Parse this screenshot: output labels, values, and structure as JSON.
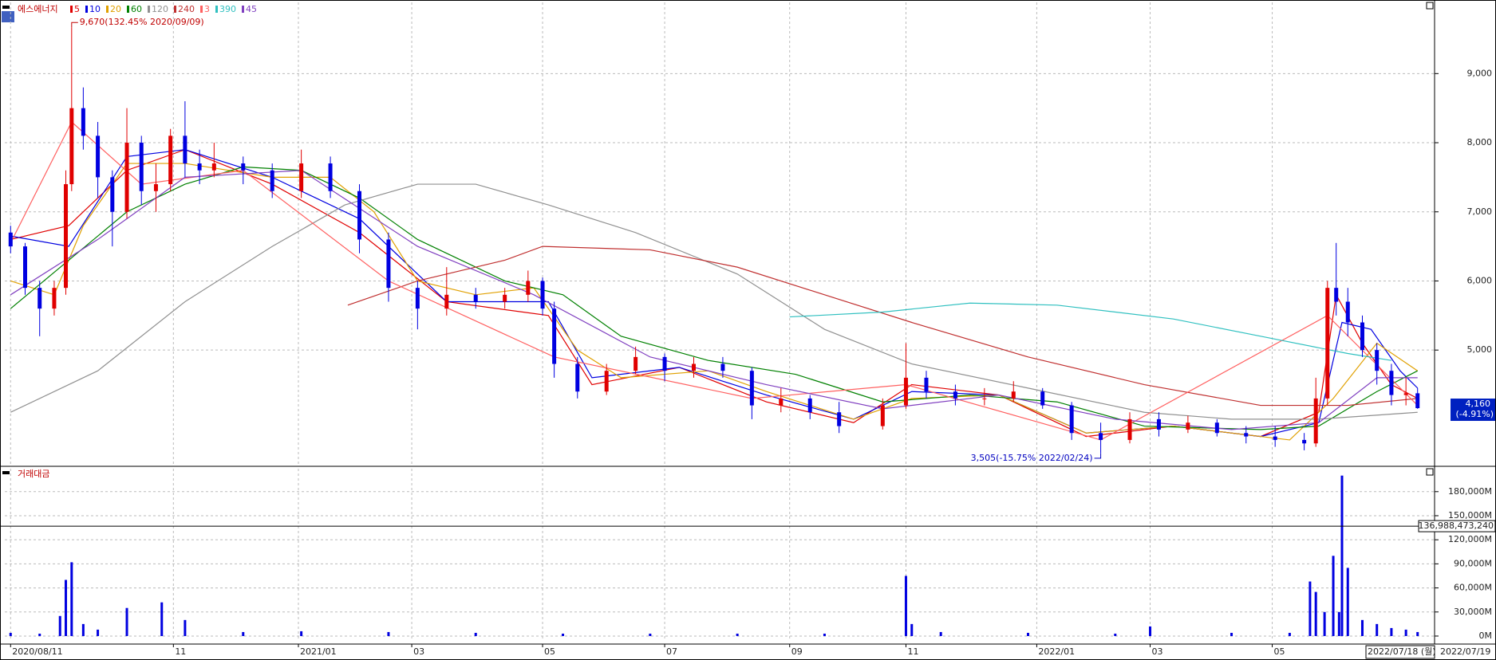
{
  "chart_data": {
    "type": "candlestick",
    "title": "에스에너지",
    "xlim": [
      -2,
      486
    ],
    "xticks": [
      {
        "value": 0,
        "label": "2020/08/11"
      },
      {
        "value": 56,
        "label": "11"
      },
      {
        "value": 99,
        "label": "2021/01"
      },
      {
        "value": 138,
        "label": "03"
      },
      {
        "value": 183,
        "label": "05"
      },
      {
        "value": 225,
        "label": "07"
      },
      {
        "value": 268,
        "label": "09"
      },
      {
        "value": 308,
        "label": "11"
      },
      {
        "value": 353,
        "label": "2022/01"
      },
      {
        "value": 392,
        "label": "03"
      },
      {
        "value": 434,
        "label": "05"
      }
    ],
    "ylim": [
      3330,
      10030
    ],
    "yticks": [
      {
        "value": 5000,
        "label": "5,000"
      },
      {
        "value": 6000,
        "label": "6,000"
      },
      {
        "value": 7000,
        "label": "7,000"
      },
      {
        "value": 8000,
        "label": "8,000"
      },
      {
        "value": 9000,
        "label": "9,000"
      }
    ],
    "grid": true,
    "up_color": "#e00000",
    "down_color": "#0000e0",
    "candles": {
      "x": [
        0,
        5,
        10,
        15,
        19,
        21,
        25,
        30,
        35,
        40,
        45,
        50,
        55,
        60,
        65,
        70,
        80,
        90,
        100,
        110,
        120,
        130,
        140,
        150,
        160,
        170,
        178,
        183,
        187,
        195,
        205,
        215,
        225,
        235,
        245,
        255,
        265,
        275,
        285,
        300,
        308,
        315,
        325,
        335,
        345,
        355,
        365,
        375,
        385,
        395,
        405,
        415,
        425,
        435,
        445,
        449,
        453,
        456,
        460,
        465,
        470,
        475,
        480,
        484
      ],
      "open": [
        6700,
        6500,
        5900,
        5600,
        5900,
        7400,
        8500,
        8100,
        7500,
        7000,
        8000,
        7300,
        7400,
        8100,
        7700,
        7600,
        7700,
        7600,
        7300,
        7700,
        7300,
        6600,
        5900,
        5600,
        5800,
        5700,
        5800,
        6000,
        5600,
        4800,
        4400,
        4700,
        4900,
        4700,
        4800,
        4700,
        4200,
        4300,
        4100,
        3900,
        4200,
        4600,
        4400,
        4300,
        4300,
        4400,
        4200,
        3800,
        3700,
        4000,
        3850,
        3950,
        3800,
        3750,
        3700,
        3650,
        4300,
        5900,
        5700,
        5400,
        5000,
        4700,
        4350,
        4375
      ],
      "high": [
        6800,
        6550,
        6000,
        6000,
        7600,
        9670,
        8800,
        8300,
        7600,
        8500,
        8100,
        7700,
        8200,
        8600,
        7900,
        8000,
        7800,
        7700,
        7900,
        7800,
        7400,
        6700,
        6000,
        6200,
        5900,
        5900,
        6150,
        6050,
        5700,
        4900,
        4800,
        5050,
        4950,
        4900,
        4900,
        4750,
        4450,
        4350,
        4250,
        4300,
        5100,
        4700,
        4500,
        4450,
        4550,
        4450,
        4250,
        3950,
        4100,
        4100,
        4050,
        4000,
        3900,
        3900,
        3800,
        4600,
        6000,
        6550,
        5900,
        5500,
        5100,
        4800,
        4600,
        4450
      ],
      "low": [
        6400,
        5800,
        5200,
        5500,
        5800,
        7300,
        7900,
        7200,
        6500,
        6900,
        7100,
        7000,
        7300,
        7500,
        7400,
        7500,
        7400,
        7200,
        7200,
        7200,
        6400,
        5700,
        5300,
        5500,
        5600,
        5600,
        5700,
        5500,
        4600,
        4300,
        4350,
        4650,
        4550,
        4600,
        4600,
        4000,
        4100,
        4000,
        3800,
        3850,
        4150,
        4300,
        4200,
        4200,
        4250,
        4150,
        3700,
        3505,
        3650,
        3750,
        3800,
        3750,
        3650,
        3600,
        3550,
        3600,
        4200,
        5500,
        5200,
        4900,
        4500,
        4200,
        4200,
        4150
      ],
      "close": [
        6500,
        5900,
        5600,
        5900,
        7400,
        8500,
        8100,
        7500,
        7000,
        8000,
        7300,
        7400,
        8100,
        7700,
        7600,
        7700,
        7600,
        7300,
        7700,
        7300,
        6600,
        5900,
        5600,
        5800,
        5700,
        5800,
        6000,
        5600,
        4800,
        4400,
        4700,
        4900,
        4700,
        4800,
        4700,
        4200,
        4300,
        4100,
        3900,
        4200,
        4600,
        4400,
        4300,
        4300,
        4400,
        4200,
        3800,
        3700,
        4000,
        3850,
        3950,
        3800,
        3750,
        3700,
        3650,
        4300,
        5900,
        5700,
        5400,
        5000,
        4700,
        4350,
        4375,
        4160
      ]
    },
    "series": [
      {
        "name": "5",
        "color": "#e00000",
        "x": [
          0,
          20,
          40,
          60,
          90,
          120,
          150,
          185,
          200,
          230,
          260,
          290,
          310,
          340,
          370,
          400,
          430,
          450,
          456,
          465,
          475,
          484
        ],
        "values": [
          6600,
          6800,
          7600,
          7900,
          7400,
          6700,
          5700,
          5500,
          4500,
          4750,
          4250,
          3950,
          4500,
          4350,
          3750,
          3900,
          3750,
          4100,
          5800,
          5100,
          4500,
          4300
        ]
      },
      {
        "name": "10",
        "color": "#0000e0",
        "x": [
          0,
          20,
          40,
          60,
          90,
          120,
          150,
          185,
          200,
          230,
          260,
          290,
          310,
          340,
          370,
          400,
          430,
          450,
          458,
          468,
          478,
          484
        ],
        "values": [
          6650,
          6500,
          7800,
          7900,
          7500,
          6900,
          5700,
          5700,
          4600,
          4750,
          4350,
          4000,
          4400,
          4350,
          3800,
          3900,
          3750,
          3950,
          5400,
          5300,
          4700,
          4450
        ]
      },
      {
        "name": "20",
        "color": "#e0a000",
        "x": [
          0,
          15,
          25,
          40,
          60,
          90,
          110,
          125,
          140,
          160,
          180,
          195,
          210,
          240,
          260,
          290,
          310,
          340,
          370,
          400,
          440,
          455,
          470,
          484
        ],
        "values": [
          6000,
          5800,
          6800,
          7700,
          7700,
          7500,
          7500,
          7000,
          6000,
          5800,
          5900,
          5000,
          4600,
          4700,
          4400,
          4000,
          4300,
          4350,
          3800,
          3900,
          3700,
          4300,
          5100,
          4700
        ]
      },
      {
        "name": "60",
        "color": "#008000",
        "x": [
          0,
          20,
          40,
          60,
          80,
          100,
          120,
          140,
          170,
          190,
          210,
          240,
          270,
          300,
          330,
          360,
          390,
          430,
          450,
          470,
          484
        ],
        "values": [
          5600,
          6300,
          7000,
          7400,
          7650,
          7600,
          7200,
          6600,
          6000,
          5800,
          5200,
          4850,
          4650,
          4250,
          4350,
          4250,
          3900,
          3850,
          3900,
          4400,
          4700
        ]
      },
      {
        "name": "120",
        "color": "#909090",
        "x": [
          0,
          30,
          60,
          90,
          115,
          140,
          160,
          185,
          215,
          250,
          280,
          310,
          350,
          390,
          420,
          450,
          484
        ],
        "values": [
          4100,
          4700,
          5700,
          6500,
          7100,
          7400,
          7400,
          7100,
          6700,
          6100,
          5300,
          4800,
          4450,
          4100,
          4000,
          4000,
          4100
        ]
      },
      {
        "name": "240",
        "color": "#c03030",
        "x": [
          116,
          140,
          170,
          183,
          220,
          250,
          280,
          310,
          350,
          390,
          430,
          460,
          484
        ],
        "values": [
          5650,
          6000,
          6300,
          6500,
          6450,
          6200,
          5800,
          5400,
          4900,
          4500,
          4200,
          4200,
          4300
        ]
      },
      {
        "name": "3",
        "color": "#ff6060",
        "x": [
          0,
          21,
          45,
          80,
          130,
          187,
          255,
          308,
          375,
          453,
          484
        ],
        "values": [
          6550,
          8300,
          7400,
          7600,
          6000,
          4900,
          4300,
          4500,
          3700,
          5500,
          4200
        ]
      },
      {
        "name": "390",
        "color": "#30c0c0",
        "x": [
          268,
          300,
          330,
          360,
          400,
          430,
          460,
          475
        ],
        "values": [
          5480,
          5550,
          5680,
          5650,
          5450,
          5200,
          4950,
          4850
        ]
      },
      {
        "name": "45",
        "color": "#8040c0",
        "x": [
          0,
          30,
          60,
          100,
          140,
          180,
          220,
          260,
          300,
          340,
          380,
          420,
          450,
          470,
          484
        ],
        "values": [
          5800,
          6600,
          7500,
          7600,
          6500,
          5800,
          4900,
          4500,
          4150,
          4350,
          4000,
          3850,
          3950,
          4600,
          4600
        ]
      }
    ],
    "annotations": [
      {
        "x": 21,
        "value": 9670,
        "label": "9,670(132.45% 2020/09/09)"
      },
      {
        "x": 375,
        "value": 3505,
        "label": "3,505(-15.75% 2022/02/24)"
      }
    ],
    "last_price": {
      "value": 4160,
      "label": "4,160",
      "change": "(-4.91%)"
    },
    "volume": {
      "title": "거래대금",
      "color": "#0000e0",
      "ylim": [
        -6000,
        208600
      ],
      "yticks": [
        {
          "value": 0,
          "label": "0M"
        },
        {
          "value": 30000,
          "label": "30,000M"
        },
        {
          "value": 60000,
          "label": "60,000M"
        },
        {
          "value": 90000,
          "label": "90,000M"
        },
        {
          "value": 120000,
          "label": "120,000M"
        },
        {
          "value": 150000,
          "label": "150,000M"
        },
        {
          "value": 180000,
          "label": "180,000M"
        }
      ],
      "x": [
        0,
        10,
        17,
        19,
        21,
        25,
        30,
        40,
        52,
        60,
        80,
        100,
        130,
        160,
        190,
        220,
        250,
        280,
        308,
        310,
        320,
        350,
        380,
        392,
        420,
        440,
        447,
        449,
        452,
        455,
        457,
        458,
        460,
        465,
        470,
        475,
        480,
        484
      ],
      "values": [
        4000,
        3000,
        25000,
        70000,
        92000,
        15000,
        8000,
        35000,
        42000,
        20000,
        5000,
        6000,
        5000,
        4000,
        3000,
        3000,
        3000,
        3000,
        75000,
        15000,
        5000,
        4000,
        3000,
        12000,
        4000,
        4000,
        68000,
        55000,
        30000,
        100000,
        30000,
        200000,
        85000,
        20000,
        15000,
        10000,
        8000,
        5000
      ],
      "crosshair": {
        "value": 136988.47324,
        "label": "136,988,473,240"
      }
    },
    "cursor_dates": [
      "2022/07/18 (월)",
      "2022/07/19"
    ]
  }
}
